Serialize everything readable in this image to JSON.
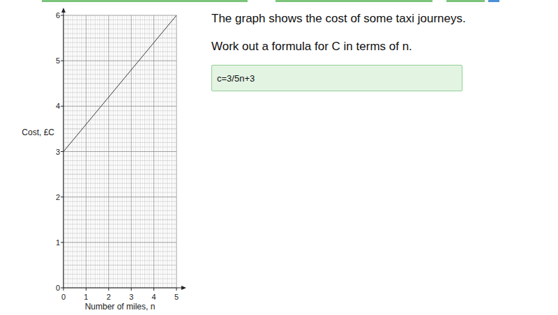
{
  "chart_data": {
    "type": "line",
    "x_label": "Number of miles, n",
    "y_label": "Cost, £C",
    "x": [
      0,
      5
    ],
    "values": [
      3,
      6
    ],
    "color": "#3a3a3a",
    "xlim": [
      0,
      5
    ],
    "ylim": [
      0,
      6
    ],
    "xticks": [
      0,
      1,
      2,
      3,
      4,
      5
    ],
    "yticks": [
      0,
      1,
      2,
      3,
      4,
      5,
      6
    ],
    "grid": true
  },
  "question": {
    "lines": [
      "The graph shows the cost of some taxi journeys.",
      "Work out a formula for C in terms of n."
    ],
    "answer": "c=3/5n+3"
  }
}
